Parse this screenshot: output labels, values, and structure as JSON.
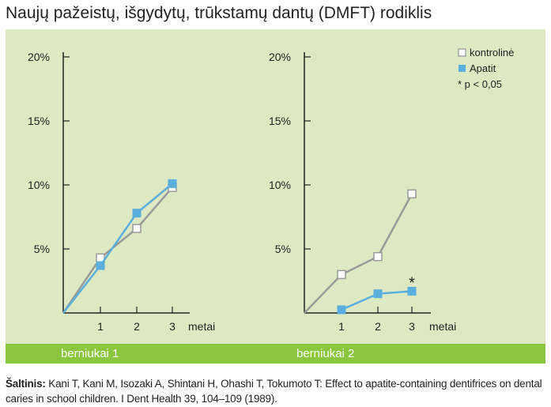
{
  "title": "Naujų pažeistų, išgydytų, trūkstamų dantų (DMFT) rodiklis",
  "chart_data": [
    {
      "type": "line",
      "panel_label": "berniukai 1",
      "xlabel": "metai",
      "x": [
        0,
        1,
        2,
        3
      ],
      "x_ticks": [
        "1",
        "2",
        "3"
      ],
      "y_ticks": [
        "5%",
        "10%",
        "15%",
        "20%"
      ],
      "ylim": [
        0,
        20
      ],
      "series": [
        {
          "name": "kontrolinė",
          "color": "#999999",
          "marker": "open-square",
          "x": [
            0,
            1,
            2,
            3
          ],
          "values": [
            0,
            4.3,
            6.6,
            9.8
          ]
        },
        {
          "name": "Apatit",
          "color": "#5aafdc",
          "marker": "filled-square",
          "x": [
            0,
            1,
            2,
            3
          ],
          "values": [
            0,
            3.7,
            7.8,
            10.1
          ]
        }
      ]
    },
    {
      "type": "line",
      "panel_label": "berniukai 2",
      "xlabel": "metai",
      "x": [
        0,
        1,
        2,
        3
      ],
      "x_ticks": [
        "1",
        "2",
        "3"
      ],
      "y_ticks": [
        "5%",
        "10%",
        "15%",
        "20%"
      ],
      "ylim": [
        0,
        20
      ],
      "series": [
        {
          "name": "kontrolinė",
          "color": "#999999",
          "marker": "open-square",
          "x": [
            0,
            1,
            2,
            3
          ],
          "values": [
            0,
            3.0,
            4.4,
            9.3
          ]
        },
        {
          "name": "Apatit",
          "color": "#5aafdc",
          "marker": "filled-square",
          "x": [
            1,
            2,
            3
          ],
          "values": [
            0.25,
            1.5,
            1.7
          ]
        }
      ],
      "annotation": {
        "text": "*",
        "x": 3,
        "series": "Apatit"
      },
      "legend": {
        "position": "top-right",
        "entries": [
          "kontrolinė",
          "Apatit",
          "* p < 0,05"
        ]
      }
    }
  ],
  "source": {
    "label": "Šaltinis:",
    "text": " Kani T, Kani M, Isozaki A, Shintani H, Ohashi T, Tokumoto T: Effect to apatite-containing dentifrices on dental caries in school children. I Dent Health 39, 104–109 (1989)."
  }
}
